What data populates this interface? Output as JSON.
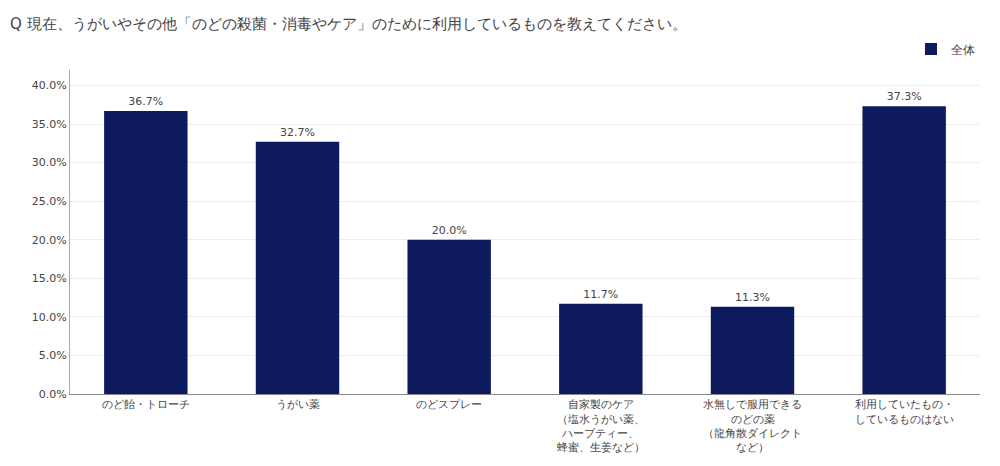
{
  "chart_data": {
    "type": "bar",
    "title": "Q 現在、うがいやその他「のどの殺菌・消毒やケア」のために利用しているものを教えてください。",
    "categories": [
      "のど飴・トローチ",
      "うがい薬",
      "のどスプレー",
      "自家製のケア\n（塩水うがい薬、\nハーブティー、\n蜂蜜、生姜など）",
      "水無しで服用できる\nのどの薬\n（龍角散ダイレクト\nなど）",
      "利用していたもの・\nしているものはない"
    ],
    "series": [
      {
        "name": "全体",
        "color": "#0d1b5e",
        "values": [
          36.7,
          32.7,
          20.0,
          11.7,
          11.3,
          37.3
        ],
        "value_labels": [
          "36.7%",
          "32.7%",
          "20.0%",
          "11.7%",
          "11.3%",
          "37.3%"
        ]
      }
    ],
    "data_labels": true,
    "ylim": [
      0,
      42
    ],
    "yticks": [
      {
        "value": 0,
        "label": "0.0%"
      },
      {
        "value": 5,
        "label": "5.0%"
      },
      {
        "value": 10,
        "label": "10.0%"
      },
      {
        "value": 15,
        "label": "15.0%"
      },
      {
        "value": 20,
        "label": "20.0%"
      },
      {
        "value": 25,
        "label": "25.0%"
      },
      {
        "value": 30,
        "label": "30.0%"
      },
      {
        "value": 35,
        "label": "35.0%"
      },
      {
        "value": 40,
        "label": "40.0%"
      }
    ],
    "grid": true,
    "legend": "upper right"
  }
}
